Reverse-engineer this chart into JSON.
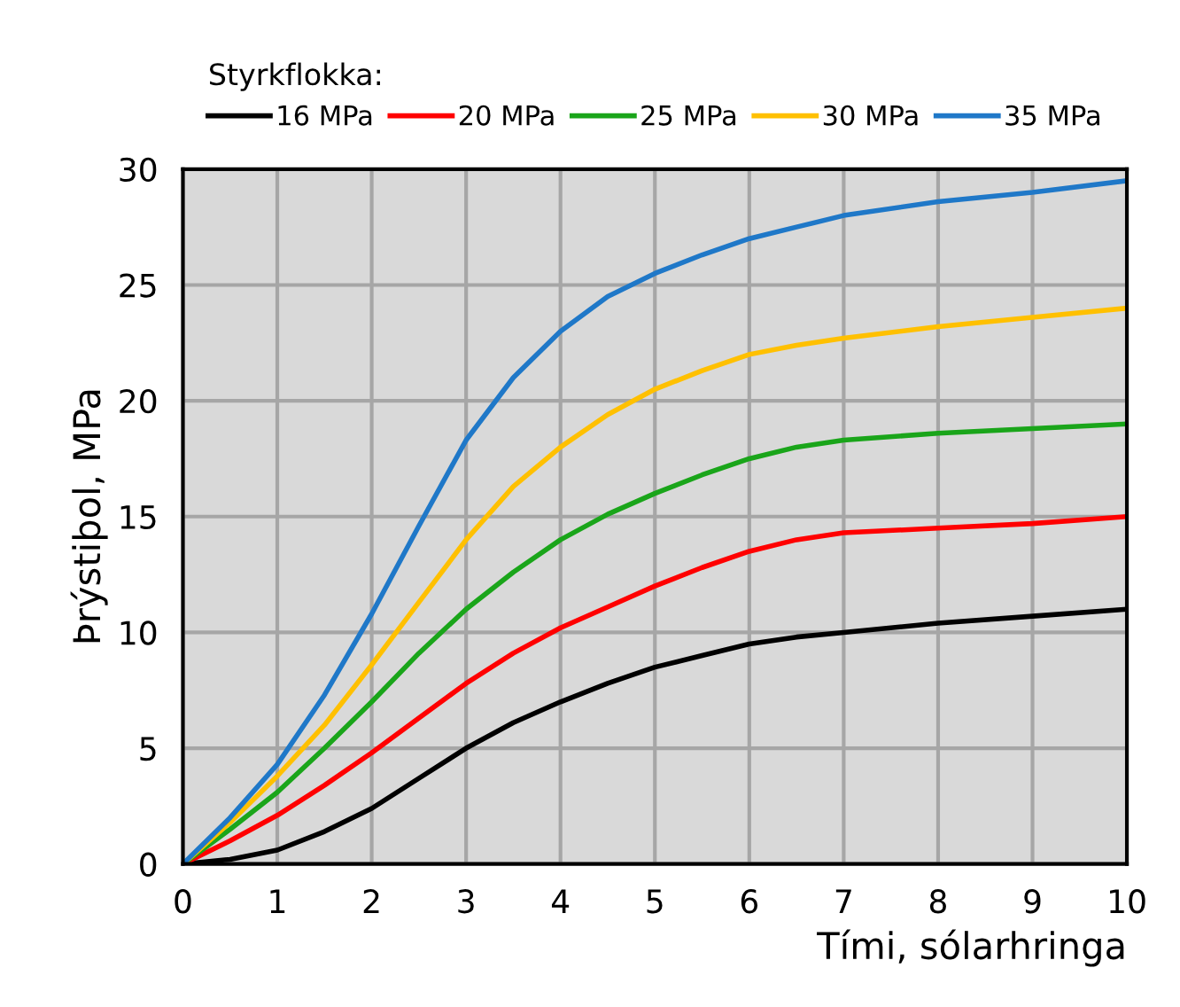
{
  "chart_data": {
    "type": "line",
    "xlabel": "Tími, sólarhringa",
    "ylabel": "Þrýstiþol, MPa",
    "legend_title": "Styrkflokka:",
    "x": [
      0,
      0.5,
      1,
      1.5,
      2,
      2.5,
      3,
      3.5,
      4,
      4.5,
      5,
      5.5,
      6,
      6.5,
      7,
      8,
      9,
      10
    ],
    "series": [
      {
        "name": "16 MPa",
        "color": "#000000",
        "values": [
          0,
          0.2,
          0.6,
          1.4,
          2.4,
          3.7,
          5.0,
          6.1,
          7.0,
          7.8,
          8.5,
          9.0,
          9.5,
          9.8,
          10.0,
          10.4,
          10.7,
          11
        ]
      },
      {
        "name": "20 MPa",
        "color": "#ff0000",
        "values": [
          0,
          1.0,
          2.1,
          3.4,
          4.8,
          6.3,
          7.8,
          9.1,
          10.2,
          11.1,
          12.0,
          12.8,
          13.5,
          14.0,
          14.3,
          14.5,
          14.7,
          15
        ]
      },
      {
        "name": "25 MPa",
        "color": "#1aa51a",
        "values": [
          0,
          1.5,
          3.1,
          5.0,
          7.0,
          9.1,
          11.0,
          12.6,
          14.0,
          15.1,
          16.0,
          16.8,
          17.5,
          18.0,
          18.3,
          18.6,
          18.8,
          19
        ]
      },
      {
        "name": "30 MPa",
        "color": "#ffc000",
        "values": [
          0,
          1.8,
          3.8,
          6.0,
          8.6,
          11.3,
          14.0,
          16.3,
          18.0,
          19.4,
          20.5,
          21.3,
          22.0,
          22.4,
          22.7,
          23.2,
          23.6,
          24
        ]
      },
      {
        "name": "35 MPa",
        "color": "#1f78c8",
        "values": [
          0,
          2.0,
          4.3,
          7.3,
          10.8,
          14.6,
          18.3,
          21.0,
          23.0,
          24.5,
          25.5,
          26.3,
          27.0,
          27.5,
          28.0,
          28.6,
          29.0,
          29.5
        ]
      }
    ],
    "xlim": [
      0,
      10
    ],
    "xticks": [
      0,
      1,
      2,
      3,
      4,
      5,
      6,
      7,
      8,
      9,
      10
    ],
    "ylim": [
      0,
      30
    ],
    "yticks": [
      0,
      5,
      10,
      15,
      20,
      25,
      30
    ],
    "grid": true,
    "legend": "top",
    "line_style": "solid",
    "marker": "none"
  }
}
